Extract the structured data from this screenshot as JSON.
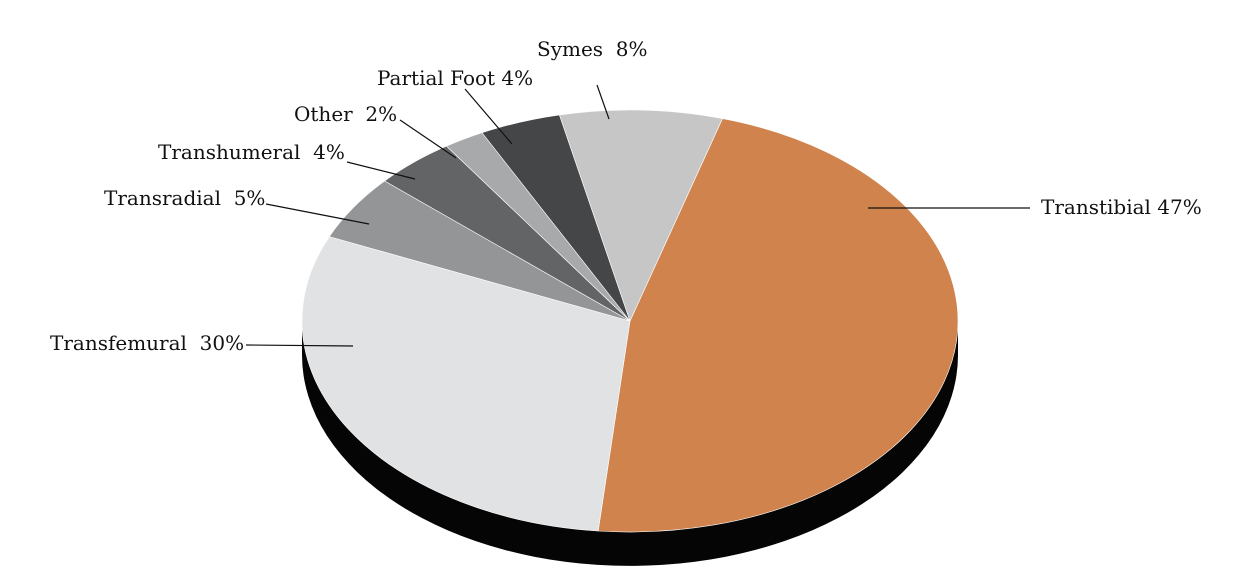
{
  "chart_data": {
    "type": "pie",
    "title": "",
    "slices": [
      {
        "label": "Transtibial",
        "label_text": "Transtibial 47%",
        "value": 47,
        "color": "#D0834D"
      },
      {
        "label": "Transfemural",
        "label_text": "Transfemural  30%",
        "value": 30,
        "color": "#E1E2E3"
      },
      {
        "label": "Transradial",
        "label_text": "Transradial  5%",
        "value": 5,
        "color": "#939597"
      },
      {
        "label": "Transhumeral",
        "label_text": "Transhumeral  4%",
        "value": 4,
        "color": "#636466"
      },
      {
        "label": "Other",
        "label_text": "Other  2%",
        "value": 2,
        "color": "#A8A9AB"
      },
      {
        "label": "Partial Foot",
        "label_text": "Partial Foot 4%",
        "value": 4,
        "color": "#454648"
      },
      {
        "label": "Symes",
        "label_text": "Symes  8%",
        "value": 8,
        "color": "#C6C6C6"
      }
    ],
    "style": "3d-tilted",
    "legend": "none",
    "labels": "outside-with-leader-lines",
    "depth_color": "#050505"
  }
}
